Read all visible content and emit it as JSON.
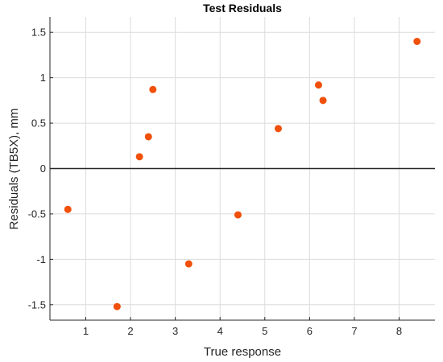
{
  "chart_data": {
    "type": "scatter",
    "title": "Test Residuals",
    "xlabel": "True response",
    "ylabel": "Residuals (TB5X), mm",
    "xlim": [
      0.2,
      8.8
    ],
    "ylim": [
      -1.67,
      1.67
    ],
    "x_ticks": [
      1,
      2,
      3,
      4,
      5,
      6,
      7,
      8
    ],
    "x_tick_labels": [
      "1",
      "2",
      "3",
      "4",
      "5",
      "6",
      "7",
      "8"
    ],
    "y_ticks": [
      -1.5,
      -1,
      -0.5,
      0,
      0.5,
      1,
      1.5
    ],
    "y_tick_labels": [
      "-1.5",
      "-1",
      "-0.5",
      "0",
      "0.5",
      "1",
      "1.5"
    ],
    "grid": true,
    "zero_line": true,
    "marker_color": "#f0500a",
    "zero_line_color": "#262626",
    "grid_color": "#dcdcdc",
    "points": [
      {
        "x": 0.6,
        "y": -0.45
      },
      {
        "x": 1.7,
        "y": -1.52
      },
      {
        "x": 2.2,
        "y": 0.13
      },
      {
        "x": 2.4,
        "y": 0.35
      },
      {
        "x": 2.5,
        "y": 0.87
      },
      {
        "x": 3.3,
        "y": -1.05
      },
      {
        "x": 4.4,
        "y": -0.51
      },
      {
        "x": 5.3,
        "y": 0.44
      },
      {
        "x": 6.2,
        "y": 0.92
      },
      {
        "x": 6.3,
        "y": 0.75
      },
      {
        "x": 8.4,
        "y": 1.4
      }
    ]
  }
}
